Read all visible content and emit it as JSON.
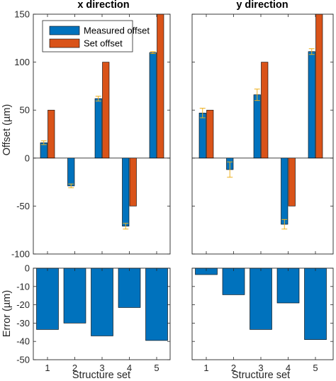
{
  "chart_data": [
    {
      "type": "bar",
      "panel": "top-left",
      "title": "x direction",
      "ylabel": "Offset (µm)",
      "categories": [
        "1",
        "2",
        "3",
        "4",
        "5"
      ],
      "ylim": [
        -100,
        150
      ],
      "yticks": [
        "-100",
        "-50",
        "0",
        "50",
        "100",
        "150"
      ],
      "series": [
        {
          "name": "Measured offset",
          "color": "#0072BD",
          "values": [
            16,
            -29,
            62,
            -71,
            110
          ],
          "errors": [
            2,
            2,
            2.5,
            3,
            1
          ]
        },
        {
          "name": "Set offset",
          "color": "#D95319",
          "values": [
            50,
            0,
            100,
            -50,
            150
          ]
        }
      ]
    },
    {
      "type": "bar",
      "panel": "top-right",
      "title": "y direction",
      "categories": [
        "1",
        "2",
        "3",
        "4",
        "5"
      ],
      "ylim": [
        -100,
        150
      ],
      "series": [
        {
          "name": "Measured offset",
          "color": "#0072BD",
          "values": [
            47,
            -12,
            66,
            -69,
            111
          ],
          "errors": [
            5,
            8,
            6,
            5,
            3
          ]
        },
        {
          "name": "Set offset",
          "color": "#D95319",
          "values": [
            50,
            0,
            100,
            -50,
            150
          ]
        }
      ]
    },
    {
      "type": "bar",
      "panel": "bottom-left",
      "ylabel": "Error (µm)",
      "xlabel": "Structure set",
      "categories": [
        "1",
        "2",
        "3",
        "4",
        "5"
      ],
      "ylim": [
        -50,
        0
      ],
      "yticks": [
        "-50",
        "-40",
        "-30",
        "-20",
        "-10",
        "0"
      ],
      "series": [
        {
          "color": "#0072BD",
          "values": [
            -33.5,
            -30,
            -37,
            -21.5,
            -39.5
          ]
        }
      ]
    },
    {
      "type": "bar",
      "panel": "bottom-right",
      "xlabel": "Structure set",
      "categories": [
        "1",
        "2",
        "3",
        "4",
        "5"
      ],
      "ylim": [
        -50,
        0
      ],
      "series": [
        {
          "color": "#0072BD",
          "values": [
            -3.5,
            -14.5,
            -33.5,
            -19,
            -39
          ]
        }
      ]
    }
  ],
  "legend": {
    "placement": "top-left",
    "items": [
      {
        "label": "Measured offset",
        "color": "#0072BD"
      },
      {
        "label": "Set offset",
        "color": "#D95319"
      }
    ]
  },
  "errorbar_color": "#EDB120"
}
